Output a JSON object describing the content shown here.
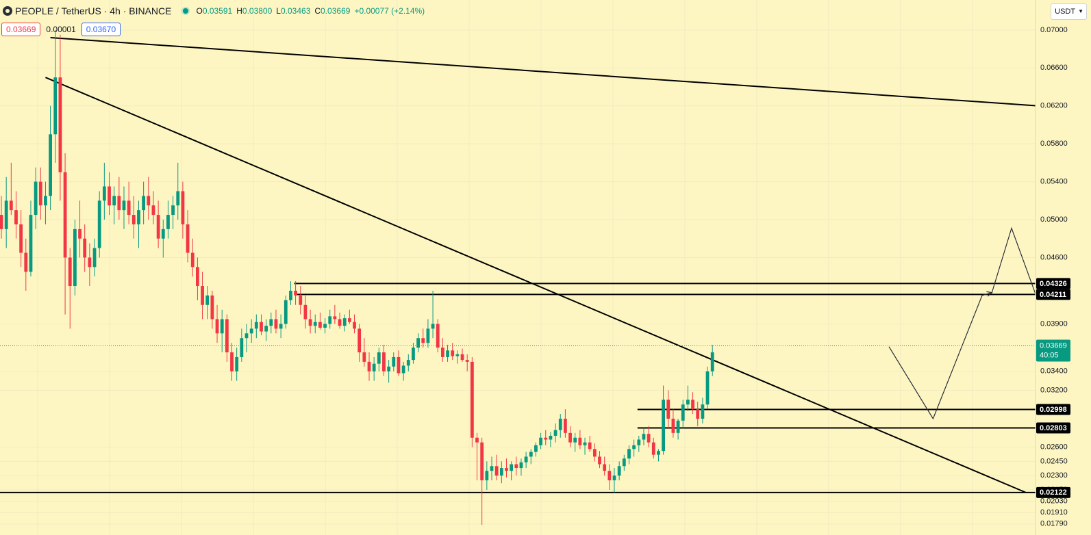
{
  "header": {
    "title": "PEOPLE / TetherUS · 4h · BINANCE",
    "ohlc": [
      {
        "k": "O",
        "v": "0.03591"
      },
      {
        "k": "H",
        "v": "0.03800"
      },
      {
        "k": "L",
        "v": "0.03463"
      },
      {
        "k": "C",
        "v": "0.03669"
      }
    ],
    "change": "+0.00077 (+2.14%)"
  },
  "trade": {
    "sell": "0.03669",
    "spread": "0.00001",
    "buy": "0.03670"
  },
  "currency": "USDT",
  "colors": {
    "up": "#089981",
    "down": "#f23645",
    "line": "#000000",
    "background": "#fdf6c3",
    "grid": "#f1ebc0"
  },
  "chart_data": {
    "type": "candlestick",
    "symbol": "PEOPLE / TetherUS",
    "interval": "4h",
    "exchange": "BINANCE",
    "ylim": [
      0.0176,
      0.071
    ],
    "y_ticks": [
      "0.07000",
      "0.06600",
      "0.06200",
      "0.05800",
      "0.05400",
      "0.05000",
      "0.04600",
      "0.03900",
      "0.03400",
      "0.03200",
      "0.02600",
      "0.02450",
      "0.02300",
      "0.02150",
      "0.02030",
      "0.01910",
      "0.01790"
    ],
    "last_price": {
      "value": "0.03669",
      "countdown": "40:05",
      "y": 0.03669
    },
    "levels": [
      {
        "label": "0.04326",
        "y": 0.04326,
        "from_bar": 60
      },
      {
        "label": "0.04211",
        "y": 0.04211,
        "from_bar": 60
      },
      {
        "label": "0.02998",
        "y": 0.02998,
        "from_bar": 130
      },
      {
        "label": "0.02803",
        "y": 0.02803,
        "from_bar": 130
      },
      {
        "label": "0.02122",
        "y": 0.02122,
        "from_bar": 0
      }
    ],
    "trendlines": [
      {
        "x1": 10,
        "y1": 0.0692,
        "x2": 245,
        "y2": 0.0608
      },
      {
        "x1": 9,
        "y1": 0.065,
        "x2": 209,
        "y2": 0.0212
      }
    ],
    "projection": [
      {
        "x": 181,
        "y": 0.0366
      },
      {
        "x": 190,
        "y": 0.029
      },
      {
        "x": 200,
        "y": 0.042
      },
      {
        "x": 202,
        "y": 0.0423
      },
      {
        "x": 206,
        "y": 0.0491
      },
      {
        "x": 211,
        "y": 0.042
      },
      {
        "x": 221,
        "y": 0.0615
      }
    ],
    "candles": [
      [
        0.0505,
        0.0525,
        0.048,
        0.049
      ],
      [
        0.049,
        0.0545,
        0.047,
        0.052
      ],
      [
        0.052,
        0.056,
        0.0505,
        0.051
      ],
      [
        0.051,
        0.053,
        0.048,
        0.0495
      ],
      [
        0.0495,
        0.051,
        0.045,
        0.0465
      ],
      [
        0.0465,
        0.048,
        0.0425,
        0.0445
      ],
      [
        0.0445,
        0.052,
        0.044,
        0.0505
      ],
      [
        0.0505,
        0.0555,
        0.049,
        0.054
      ],
      [
        0.054,
        0.0555,
        0.05,
        0.0515
      ],
      [
        0.0515,
        0.054,
        0.0495,
        0.0525
      ],
      [
        0.0525,
        0.062,
        0.051,
        0.059
      ],
      [
        0.059,
        0.07,
        0.056,
        0.065
      ],
      [
        0.065,
        0.0695,
        0.052,
        0.055
      ],
      [
        0.055,
        0.057,
        0.04,
        0.046
      ],
      [
        0.046,
        0.047,
        0.0385,
        0.043
      ],
      [
        0.043,
        0.05,
        0.042,
        0.049
      ],
      [
        0.049,
        0.052,
        0.046,
        0.048
      ],
      [
        0.048,
        0.0495,
        0.0445,
        0.046
      ],
      [
        0.046,
        0.0475,
        0.043,
        0.045
      ],
      [
        0.045,
        0.048,
        0.044,
        0.047
      ],
      [
        0.047,
        0.053,
        0.046,
        0.052
      ],
      [
        0.052,
        0.056,
        0.05,
        0.0535
      ],
      [
        0.0535,
        0.055,
        0.0505,
        0.0515
      ],
      [
        0.0515,
        0.0535,
        0.0495,
        0.0525
      ],
      [
        0.0525,
        0.0545,
        0.05,
        0.051
      ],
      [
        0.051,
        0.0535,
        0.049,
        0.052
      ],
      [
        0.052,
        0.054,
        0.0495,
        0.0505
      ],
      [
        0.0505,
        0.0525,
        0.048,
        0.0495
      ],
      [
        0.0495,
        0.052,
        0.047,
        0.051
      ],
      [
        0.051,
        0.054,
        0.0495,
        0.0525
      ],
      [
        0.0525,
        0.0545,
        0.05,
        0.0515
      ],
      [
        0.0515,
        0.053,
        0.0495,
        0.0505
      ],
      [
        0.0505,
        0.052,
        0.047,
        0.048
      ],
      [
        0.048,
        0.05,
        0.046,
        0.049
      ],
      [
        0.049,
        0.052,
        0.048,
        0.0505
      ],
      [
        0.0505,
        0.0525,
        0.049,
        0.0515
      ],
      [
        0.0515,
        0.056,
        0.05,
        0.053
      ],
      [
        0.053,
        0.054,
        0.048,
        0.0495
      ],
      [
        0.0495,
        0.051,
        0.0455,
        0.0465
      ],
      [
        0.0465,
        0.048,
        0.044,
        0.045
      ],
      [
        0.045,
        0.046,
        0.0415,
        0.043
      ],
      [
        0.043,
        0.0445,
        0.0395,
        0.041
      ],
      [
        0.041,
        0.043,
        0.0395,
        0.042
      ],
      [
        0.042,
        0.0425,
        0.0385,
        0.0395
      ],
      [
        0.0395,
        0.041,
        0.037,
        0.038
      ],
      [
        0.038,
        0.0405,
        0.036,
        0.0395
      ],
      [
        0.0395,
        0.04,
        0.035,
        0.036
      ],
      [
        0.036,
        0.037,
        0.033,
        0.034
      ],
      [
        0.034,
        0.0365,
        0.033,
        0.0355
      ],
      [
        0.0355,
        0.0385,
        0.035,
        0.0375
      ],
      [
        0.0375,
        0.039,
        0.036,
        0.038
      ],
      [
        0.038,
        0.0395,
        0.037,
        0.0385
      ],
      [
        0.0385,
        0.04,
        0.0375,
        0.0392
      ],
      [
        0.0392,
        0.04,
        0.0378,
        0.0382
      ],
      [
        0.0382,
        0.0395,
        0.0372,
        0.0388
      ],
      [
        0.0388,
        0.0402,
        0.038,
        0.0395
      ],
      [
        0.0395,
        0.0405,
        0.038,
        0.0385
      ],
      [
        0.0385,
        0.04,
        0.0375,
        0.039
      ],
      [
        0.039,
        0.042,
        0.0385,
        0.0415
      ],
      [
        0.0415,
        0.0435,
        0.041,
        0.0425
      ],
      [
        0.0425,
        0.0435,
        0.041,
        0.042
      ],
      [
        0.042,
        0.043,
        0.04,
        0.041
      ],
      [
        0.041,
        0.042,
        0.0385,
        0.0395
      ],
      [
        0.0395,
        0.0405,
        0.038,
        0.0388
      ],
      [
        0.0388,
        0.04,
        0.038,
        0.0392
      ],
      [
        0.0392,
        0.0402,
        0.0384,
        0.0386
      ],
      [
        0.0386,
        0.0396,
        0.038,
        0.039
      ],
      [
        0.039,
        0.0405,
        0.0385,
        0.0398
      ],
      [
        0.0398,
        0.041,
        0.039,
        0.0395
      ],
      [
        0.0395,
        0.0402,
        0.0385,
        0.0388
      ],
      [
        0.0388,
        0.04,
        0.0382,
        0.0396
      ],
      [
        0.0396,
        0.0405,
        0.039,
        0.0392
      ],
      [
        0.0392,
        0.04,
        0.038,
        0.0385
      ],
      [
        0.0385,
        0.039,
        0.035,
        0.036
      ],
      [
        0.036,
        0.0375,
        0.0345,
        0.035
      ],
      [
        0.035,
        0.036,
        0.033,
        0.034
      ],
      [
        0.034,
        0.0355,
        0.033,
        0.0348
      ],
      [
        0.0348,
        0.0365,
        0.034,
        0.036
      ],
      [
        0.036,
        0.0368,
        0.0335,
        0.034
      ],
      [
        0.034,
        0.0352,
        0.0328,
        0.0345
      ],
      [
        0.0345,
        0.036,
        0.034,
        0.0355
      ],
      [
        0.0355,
        0.0362,
        0.0335,
        0.0338
      ],
      [
        0.0338,
        0.035,
        0.033,
        0.0346
      ],
      [
        0.0346,
        0.0358,
        0.034,
        0.0352
      ],
      [
        0.0352,
        0.037,
        0.0348,
        0.0365
      ],
      [
        0.0365,
        0.038,
        0.036,
        0.0375
      ],
      [
        0.0375,
        0.0385,
        0.0365,
        0.037
      ],
      [
        0.037,
        0.0395,
        0.0365,
        0.0385
      ],
      [
        0.0385,
        0.0425,
        0.0375,
        0.039
      ],
      [
        0.039,
        0.0395,
        0.036,
        0.0365
      ],
      [
        0.0365,
        0.0375,
        0.035,
        0.0355
      ],
      [
        0.0355,
        0.0368,
        0.035,
        0.0362
      ],
      [
        0.0362,
        0.037,
        0.0352,
        0.0356
      ],
      [
        0.0356,
        0.0362,
        0.0348,
        0.0358
      ],
      [
        0.0358,
        0.0364,
        0.035,
        0.0352
      ],
      [
        0.0352,
        0.0358,
        0.034,
        0.035
      ],
      [
        0.035,
        0.0355,
        0.026,
        0.027
      ],
      [
        0.027,
        0.0275,
        0.0225,
        0.0265
      ],
      [
        0.0265,
        0.027,
        0.0178,
        0.0225
      ],
      [
        0.0225,
        0.0245,
        0.0215,
        0.0235
      ],
      [
        0.0235,
        0.025,
        0.0225,
        0.024
      ],
      [
        0.024,
        0.0252,
        0.0225,
        0.023
      ],
      [
        0.023,
        0.0245,
        0.0222,
        0.0238
      ],
      [
        0.0238,
        0.0248,
        0.0228,
        0.0235
      ],
      [
        0.0235,
        0.0245,
        0.0225,
        0.0242
      ],
      [
        0.0242,
        0.025,
        0.023,
        0.0238
      ],
      [
        0.0238,
        0.0248,
        0.023,
        0.0244
      ],
      [
        0.0244,
        0.0255,
        0.0238,
        0.025
      ],
      [
        0.025,
        0.0258,
        0.0242,
        0.0255
      ],
      [
        0.0255,
        0.0265,
        0.025,
        0.0262
      ],
      [
        0.0262,
        0.0275,
        0.0258,
        0.027
      ],
      [
        0.027,
        0.0278,
        0.0262,
        0.0268
      ],
      [
        0.0268,
        0.0276,
        0.026,
        0.0272
      ],
      [
        0.0272,
        0.0285,
        0.0265,
        0.0278
      ],
      [
        0.0278,
        0.0295,
        0.027,
        0.029
      ],
      [
        0.029,
        0.03,
        0.027,
        0.0275
      ],
      [
        0.0275,
        0.0282,
        0.026,
        0.0265
      ],
      [
        0.0265,
        0.0275,
        0.0255,
        0.027
      ],
      [
        0.027,
        0.0278,
        0.0258,
        0.0262
      ],
      [
        0.0262,
        0.027,
        0.0252,
        0.0265
      ],
      [
        0.0265,
        0.0272,
        0.0255,
        0.0258
      ],
      [
        0.0258,
        0.0264,
        0.0245,
        0.025
      ],
      [
        0.025,
        0.0256,
        0.0238,
        0.0242
      ],
      [
        0.0242,
        0.025,
        0.023,
        0.0235
      ],
      [
        0.0235,
        0.0242,
        0.0215,
        0.0225
      ],
      [
        0.0225,
        0.0238,
        0.0212,
        0.023
      ],
      [
        0.023,
        0.0245,
        0.0225,
        0.024
      ],
      [
        0.024,
        0.0252,
        0.0235,
        0.0248
      ],
      [
        0.0248,
        0.0262,
        0.0242,
        0.0258
      ],
      [
        0.0258,
        0.0268,
        0.025,
        0.0262
      ],
      [
        0.0262,
        0.0272,
        0.0255,
        0.0268
      ],
      [
        0.0268,
        0.028,
        0.0262,
        0.0274
      ],
      [
        0.0274,
        0.0282,
        0.026,
        0.0265
      ],
      [
        0.0265,
        0.027,
        0.0248,
        0.0252
      ],
      [
        0.0252,
        0.0258,
        0.0245,
        0.0256
      ],
      [
        0.0256,
        0.0325,
        0.0252,
        0.031
      ],
      [
        0.031,
        0.032,
        0.028,
        0.029
      ],
      [
        0.029,
        0.03,
        0.027,
        0.0275
      ],
      [
        0.0275,
        0.029,
        0.0268,
        0.0288
      ],
      [
        0.0288,
        0.031,
        0.028,
        0.0305
      ],
      [
        0.0305,
        0.0325,
        0.0298,
        0.031
      ],
      [
        0.031,
        0.0318,
        0.0295,
        0.03
      ],
      [
        0.03,
        0.0308,
        0.0282,
        0.029
      ],
      [
        0.029,
        0.0312,
        0.0285,
        0.0305
      ],
      [
        0.0305,
        0.0345,
        0.03,
        0.034
      ],
      [
        0.034,
        0.0368,
        0.0335,
        0.036
      ]
    ]
  }
}
